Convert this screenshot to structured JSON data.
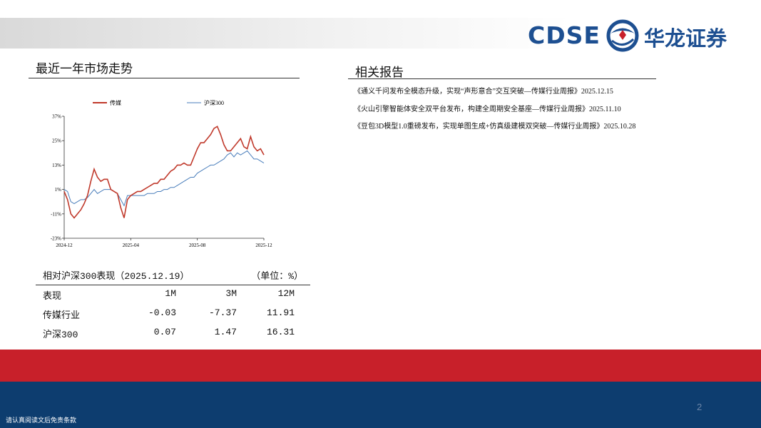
{
  "header": {
    "logo_text": "CDSE",
    "company": "华龙证券"
  },
  "market": {
    "title": "最近一年市场走势",
    "chart": {
      "type": "line",
      "categories": [
        "2024-12",
        null,
        null,
        null,
        null,
        null,
        null,
        null,
        null,
        null,
        null,
        null,
        null,
        null,
        null,
        null,
        null,
        null,
        null,
        null,
        "2025-04",
        null,
        null,
        null,
        null,
        null,
        null,
        null,
        null,
        null,
        null,
        null,
        null,
        null,
        null,
        null,
        null,
        null,
        null,
        null,
        "2025-08",
        null,
        null,
        null,
        null,
        null,
        null,
        null,
        null,
        null,
        null,
        null,
        null,
        null,
        null,
        null,
        null,
        null,
        null,
        null,
        "2025-12"
      ],
      "series": [
        {
          "name": "传媒",
          "color": "#c0392b",
          "values": [
            0,
            -4,
            -11,
            -13,
            -11,
            -9,
            -6,
            -2,
            5,
            11,
            7,
            5,
            6,
            6,
            1,
            0,
            -1,
            -8,
            -13,
            -4,
            -2,
            -1,
            0,
            0,
            1,
            2,
            3,
            4,
            4,
            6,
            6,
            8,
            10,
            11,
            13,
            13,
            14,
            13,
            13,
            17,
            21,
            24,
            24,
            26,
            28,
            31,
            32,
            28,
            23,
            20,
            20,
            22,
            24,
            26,
            22,
            21,
            27,
            22,
            20,
            21,
            18
          ]
        },
        {
          "name": "沪深300",
          "color": "#4a7ebb",
          "values": [
            1,
            0,
            -5,
            -6,
            -5,
            -4,
            -4,
            -3,
            -1,
            1,
            -1,
            0,
            1,
            1,
            1,
            0,
            -1,
            -4,
            -7,
            -2,
            -2,
            -2,
            -2,
            -2,
            -2,
            -1,
            -1,
            -1,
            0,
            0,
            1,
            1,
            2,
            2,
            3,
            4,
            5,
            6,
            7,
            7,
            9,
            10,
            11,
            12,
            13,
            13,
            14,
            15,
            16,
            18,
            19,
            17,
            19,
            18,
            19,
            20,
            18,
            16,
            16,
            15,
            14
          ]
        }
      ],
      "ylim": [
        -23,
        37
      ],
      "yticks": [
        {
          "value": 37,
          "label": "37%"
        },
        {
          "value": 25,
          "label": "25%"
        },
        {
          "value": 13,
          "label": "13%"
        },
        {
          "value": 1,
          "label": "1%"
        },
        {
          "value": -11,
          "label": "-11%"
        },
        {
          "value": -23,
          "label": "-23%"
        }
      ]
    }
  },
  "table": {
    "title": "相对沪深300表现（2025.12.19）",
    "unit": "（单位：%）",
    "header": [
      "表现",
      "1M",
      "3M",
      "12M"
    ],
    "rows": [
      [
        "传媒行业",
        -0.03,
        -7.37,
        11.91
      ],
      [
        "沪深300",
        0.07,
        1.47,
        16.31
      ]
    ]
  },
  "reports": {
    "title": "相关报告",
    "items": [
      "《通义千问发布全模态升级，实现“声形意合”交互突破—传媒行业周报》2025.12.15",
      "《火山引擎智能体安全双平台发布，构建全周期安全基座—传媒行业周报》2025.11.10",
      "《豆包3D模型1.0重磅发布，实现单图生成+仿真级建模双突破—传媒行业周报》2025.10.28"
    ]
  },
  "page_number": "2",
  "footer": "请认真阅读文后免责条款"
}
